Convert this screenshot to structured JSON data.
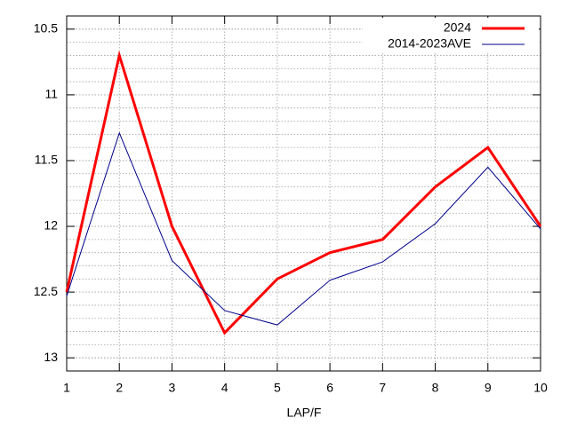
{
  "chart_data": {
    "type": "line",
    "x": [
      1,
      2,
      3,
      4,
      5,
      6,
      7,
      8,
      9,
      10
    ],
    "xlabel": "LAP/F",
    "series": [
      {
        "name": "2024",
        "color": "#ff0000",
        "width": 3,
        "values": [
          12.5,
          10.7,
          12.0,
          12.81,
          12.4,
          12.2,
          12.1,
          11.7,
          11.4,
          12.0
        ]
      },
      {
        "name": "2014-2023AVE",
        "color": "#00008b",
        "width": 1,
        "values": [
          12.53,
          11.29,
          12.26,
          12.64,
          12.75,
          12.41,
          12.27,
          11.98,
          11.55,
          12.02
        ]
      }
    ],
    "xlim": [
      1,
      10
    ],
    "xticks": [
      1,
      2,
      3,
      4,
      5,
      6,
      7,
      8,
      9,
      10
    ],
    "ylim": [
      13.1,
      10.4
    ],
    "yticks": [
      10.5,
      11,
      11.5,
      12,
      12.5,
      13
    ],
    "grid": true,
    "minor_grid": true,
    "legend": "top-right"
  }
}
